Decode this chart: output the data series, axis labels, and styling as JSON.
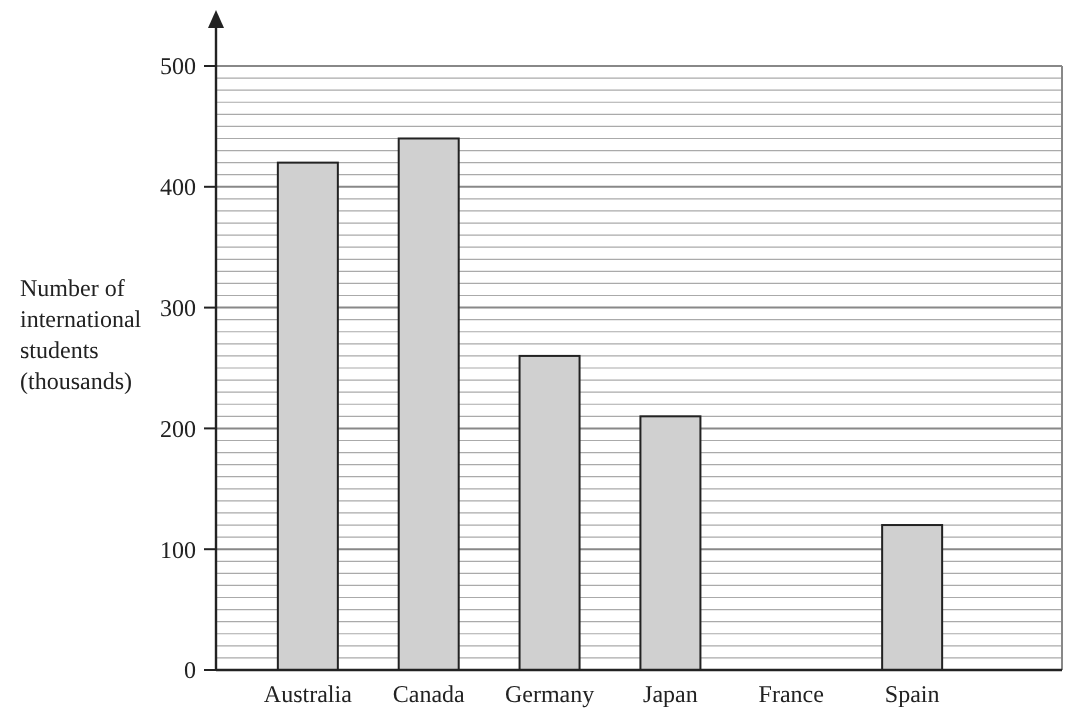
{
  "chart_data": {
    "type": "bar",
    "ylabel": "Number of international students (thousands)",
    "categories": [
      "Australia",
      "Canada",
      "Germany",
      "Japan",
      "France",
      "Spain"
    ],
    "values": [
      420,
      440,
      260,
      210,
      null,
      120
    ],
    "color": "#d0d0d0",
    "ylim": [
      0,
      500
    ],
    "yticks": [
      0,
      100,
      200,
      300,
      400,
      500
    ],
    "grid": true
  }
}
